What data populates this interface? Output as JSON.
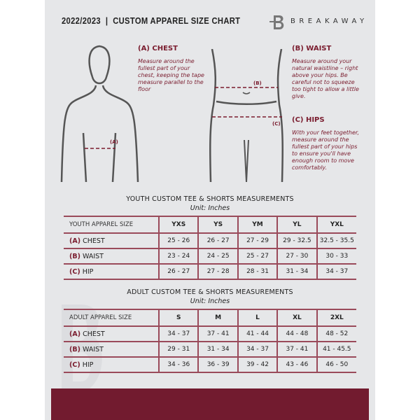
{
  "header": {
    "title": "2022/2023  |  CUSTOM APPAREL SIZE CHART",
    "brand": "BREAKAWAY"
  },
  "measures": {
    "chest": {
      "title": "(A) CHEST",
      "desc": "Measure around the fullest part of your chest, keeping the tape measure parallel to the floor",
      "tag": "(A)"
    },
    "waist": {
      "title": "(B) WAIST",
      "desc": "Measure around your natural waistline – right above your hips. Be careful not to squeeze too tight to allow a little give.",
      "tag": "(B)"
    },
    "hips": {
      "title": "(C) HIPS",
      "desc": "With your feet together, measure around the fullest part of your hips to ensure you'll have enough room to move comfortably.",
      "tag": "(C)"
    }
  },
  "youth": {
    "title": "YOUTH CUSTOM TEE & SHORTS MEASUREMENTS",
    "unit": "Unit: Inches",
    "header": "YOUTH APPAREL SIZE",
    "sizes": [
      "YXS",
      "YS",
      "YM",
      "YL",
      "YXL"
    ],
    "rows": [
      {
        "key": "(A)",
        "label": "CHEST",
        "values": [
          "25 - 26",
          "26 - 27",
          "27 - 29",
          "29 - 32.5",
          "32.5 - 35.5"
        ]
      },
      {
        "key": "(B)",
        "label": "WAIST",
        "values": [
          "23 - 24",
          "24 - 25",
          "25 - 27",
          "27 - 30",
          "30 - 33"
        ]
      },
      {
        "key": "(C)",
        "label": "HIP",
        "values": [
          "26 - 27",
          "27 - 28",
          "28 - 31",
          "31 - 34",
          "34 - 37"
        ]
      }
    ]
  },
  "adult": {
    "title": "ADULT CUSTOM TEE & SHORTS MEASUREMENTS",
    "unit": "Unit: Inches",
    "header": "ADULT APPAREL SIZE",
    "sizes": [
      "S",
      "M",
      "L",
      "XL",
      "2XL"
    ],
    "rows": [
      {
        "key": "(A)",
        "label": "CHEST",
        "values": [
          "34 - 37",
          "37 - 41",
          "41 - 44",
          "44 - 48",
          "48 - 52"
        ]
      },
      {
        "key": "(B)",
        "label": "WAIST",
        "values": [
          "29 - 31",
          "31 - 34",
          "34 - 37",
          "37 - 41",
          "41 - 45.5"
        ]
      },
      {
        "key": "(C)",
        "label": "HIP",
        "values": [
          "34 - 36",
          "36 - 39",
          "39 - 42",
          "43 - 46",
          "46 - 50"
        ]
      }
    ]
  },
  "colors": {
    "accent": "#721b2f",
    "background": "#e6e7e9"
  }
}
